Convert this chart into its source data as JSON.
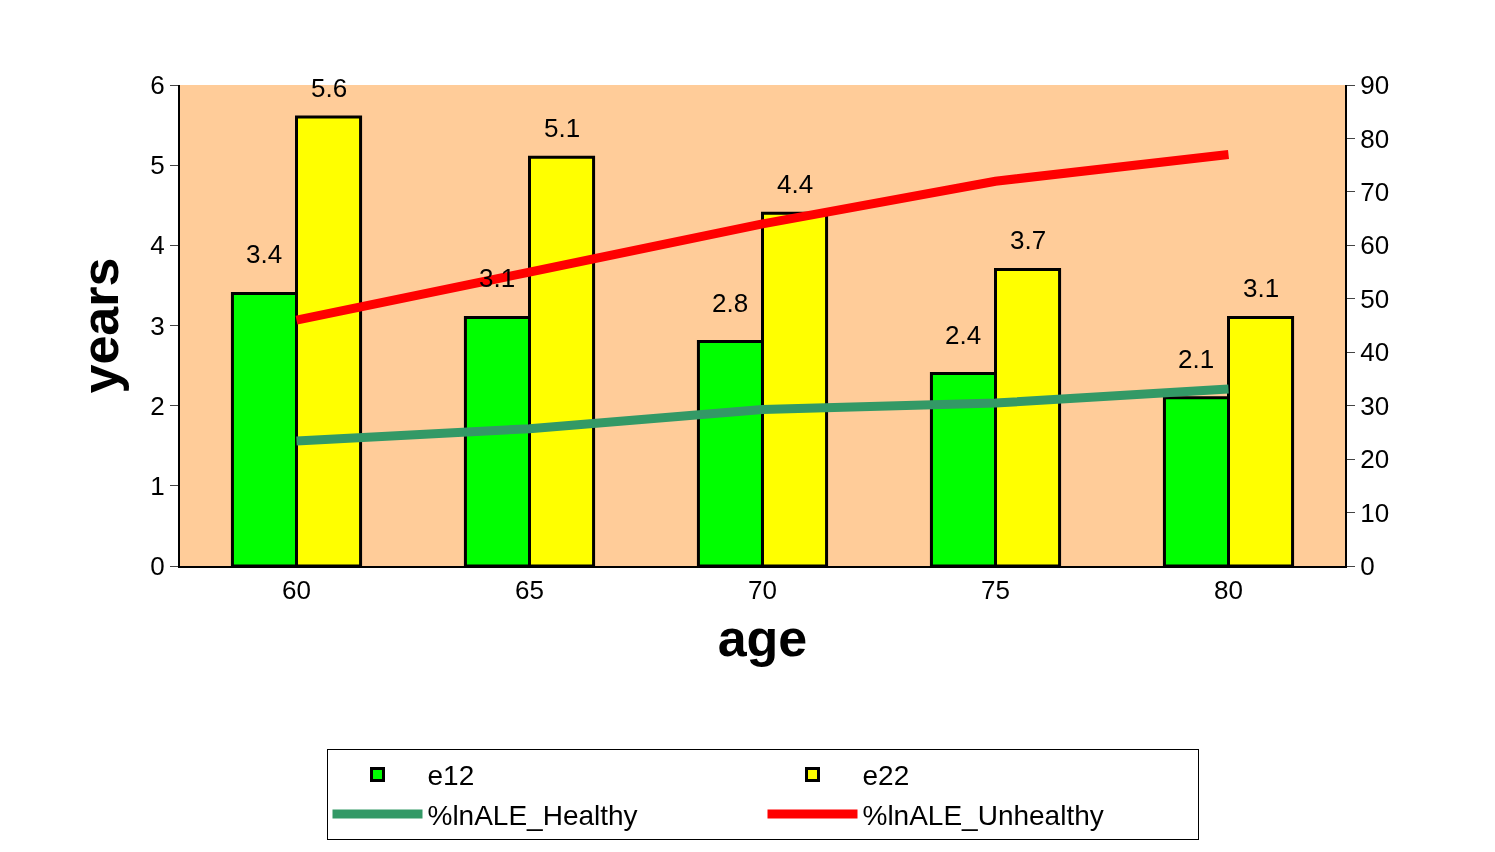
{
  "chart_data": {
    "type": "bar",
    "xlabel": "age",
    "ylabel": "years",
    "categories": [
      "60",
      "65",
      "70",
      "75",
      "80"
    ],
    "series": [
      {
        "name": "e12",
        "color": "#00ff00",
        "values": [
          3.4,
          3.1,
          2.8,
          2.4,
          2.1
        ],
        "value_labels": [
          "3.4",
          "3.1",
          "2.8",
          "2.4",
          "2.1"
        ]
      },
      {
        "name": "e22",
        "color": "#ffff00",
        "values": [
          5.6,
          5.1,
          4.4,
          3.7,
          3.1
        ],
        "value_labels": [
          "5.6",
          "5.1",
          "4.4",
          "3.7",
          "3.1"
        ]
      },
      {
        "name": "%lnALE_Healthy",
        "type": "line",
        "axis": "y2",
        "color": "#339966",
        "values": [
          23.4,
          25.7,
          29.3,
          30.5,
          33.1
        ]
      },
      {
        "name": "%lnALE_Unhealthy",
        "type": "line",
        "axis": "y2",
        "color": "#ff0000",
        "values": [
          46,
          55,
          64,
          72,
          77
        ]
      }
    ],
    "ylim": [
      0,
      6
    ],
    "yticks": [
      0,
      1,
      2,
      3,
      4,
      5,
      6
    ],
    "y2lim": [
      0,
      90
    ],
    "y2ticks": [
      0,
      10,
      20,
      30,
      40,
      50,
      60,
      70,
      80,
      90
    ],
    "grid": false,
    "legend": "bottom",
    "marker": "none",
    "line_style": "solid"
  }
}
